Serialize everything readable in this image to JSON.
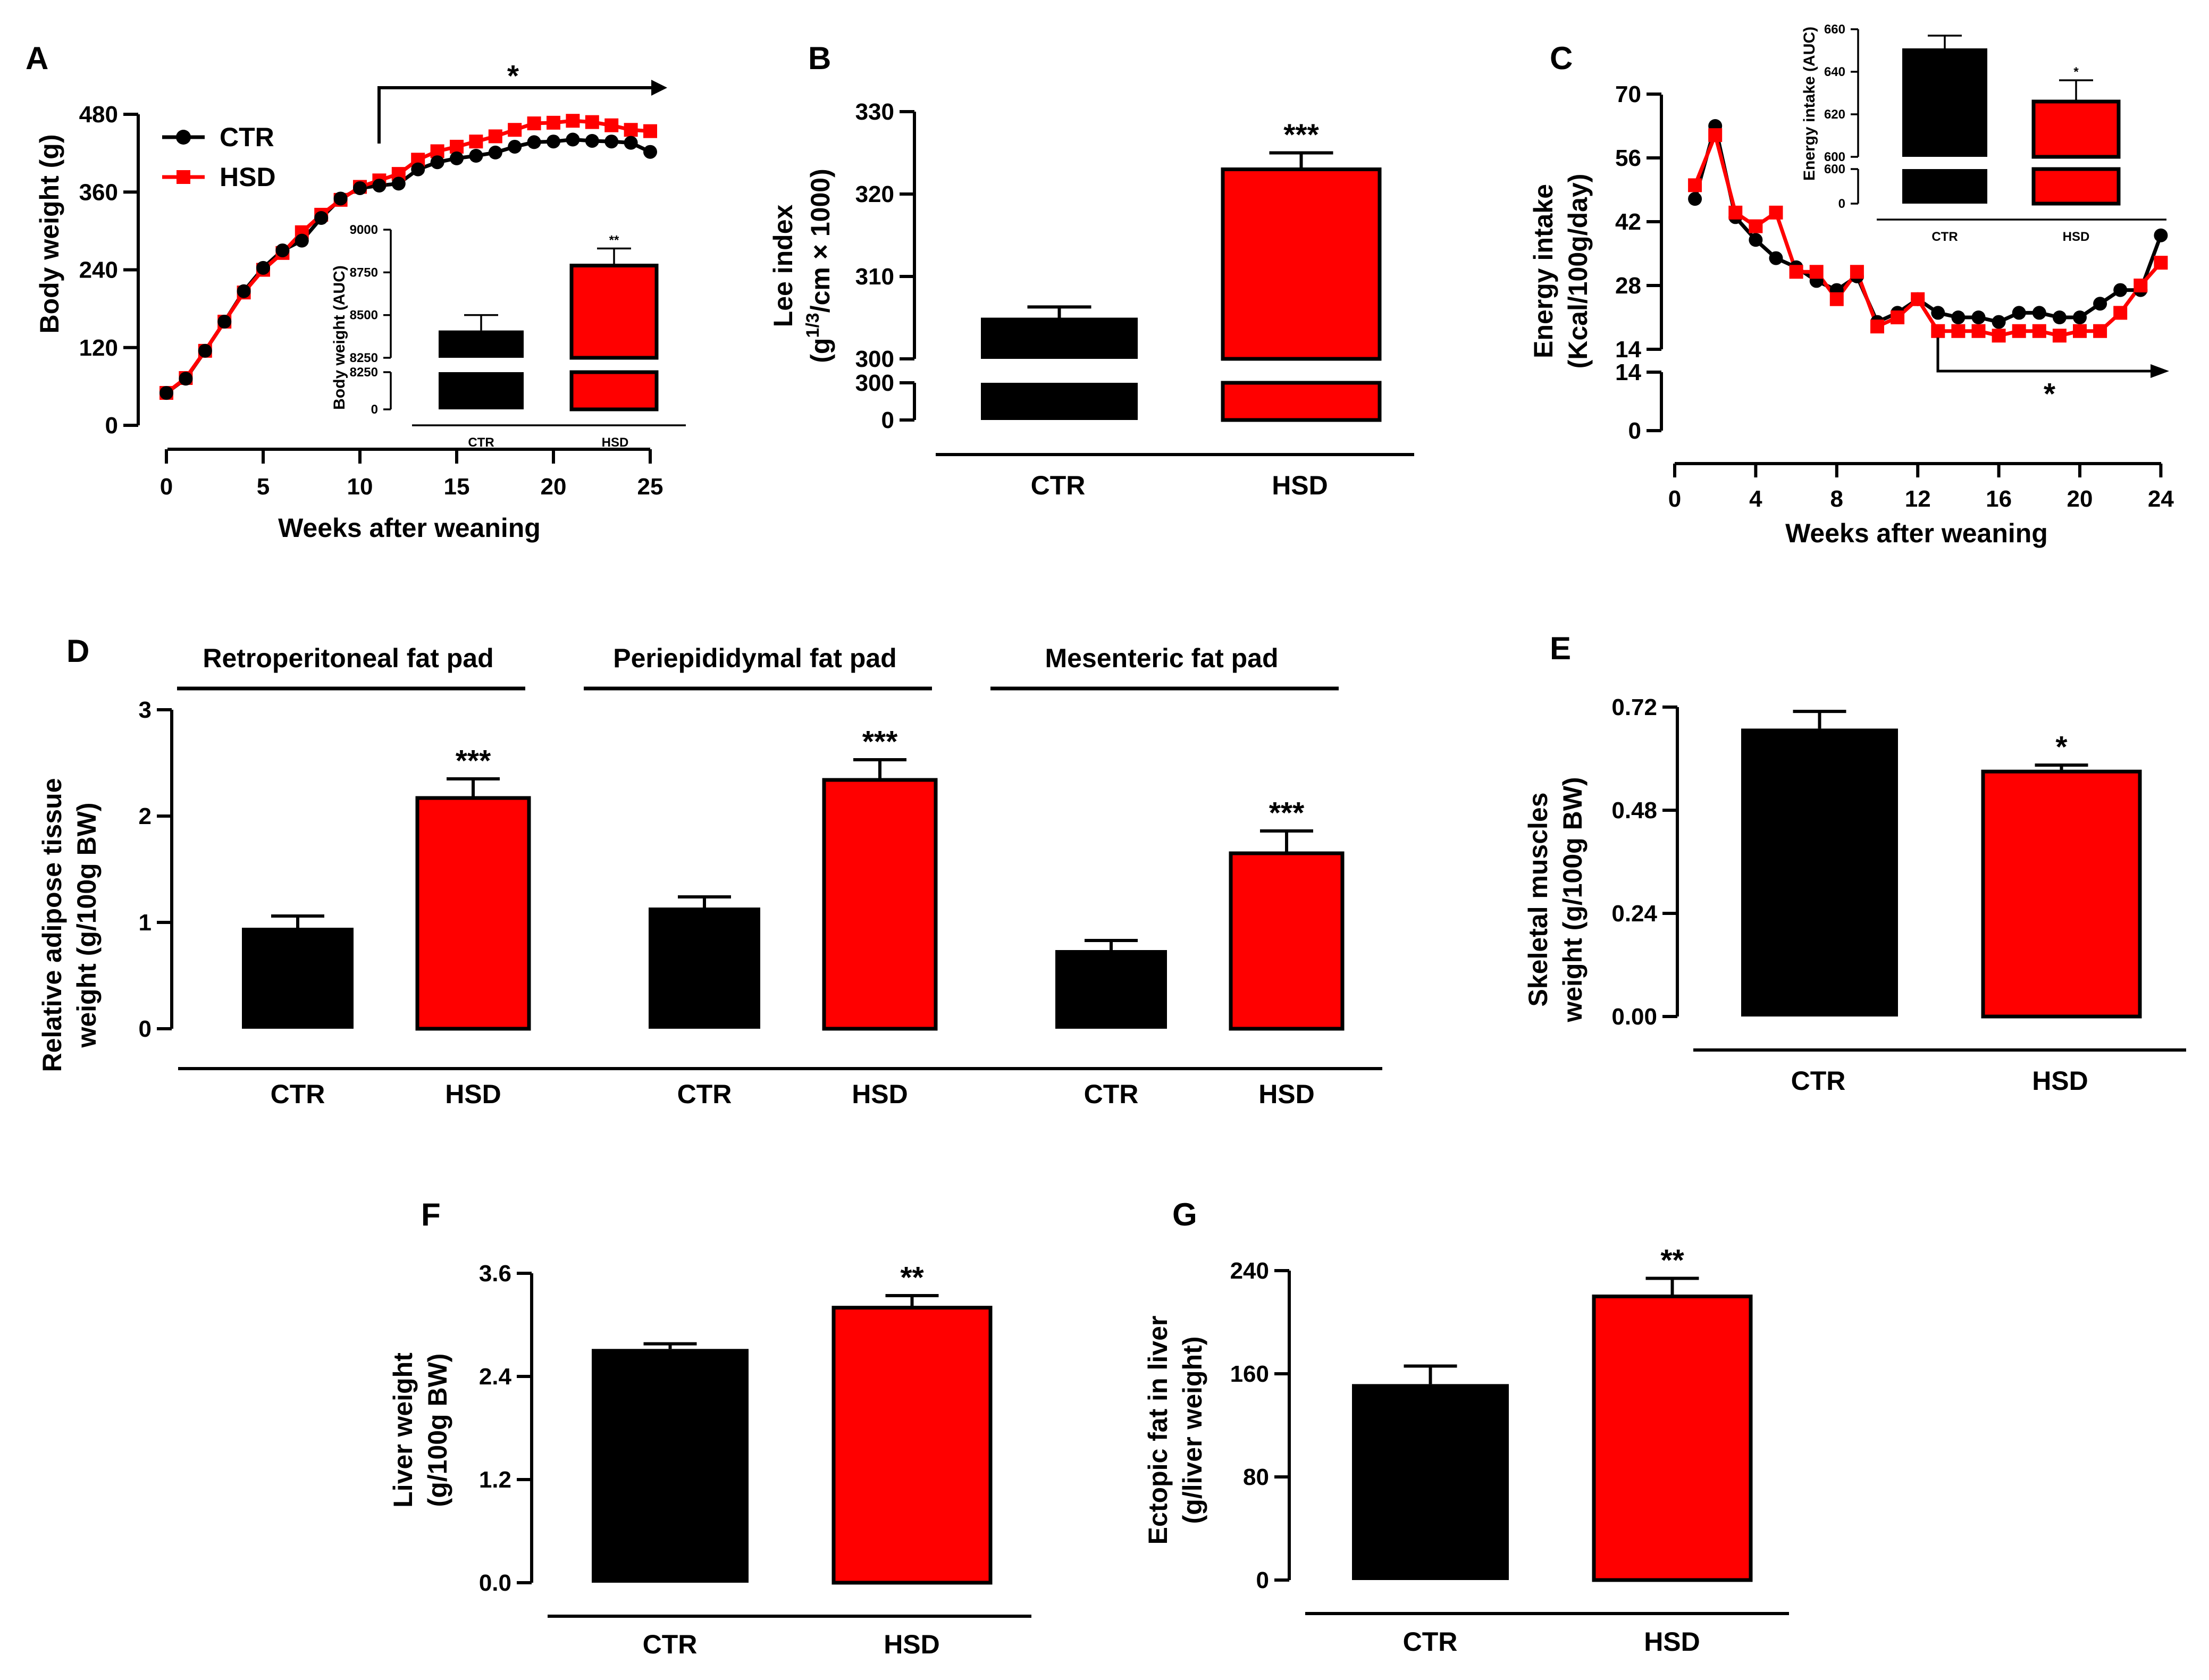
{
  "colors": {
    "ctr": "#000000",
    "hsd": "#ff0000"
  },
  "chart_data": [
    {
      "panel": "A",
      "type": "line",
      "xlabel": "Weeks after weaning",
      "ylabel": "Body weight (g)",
      "xlim": [
        0,
        25
      ],
      "ylim": [
        0,
        480
      ],
      "xticks": [
        "0",
        "5",
        "10",
        "15",
        "20",
        "25"
      ],
      "yticks": [
        "0",
        "120",
        "240",
        "360",
        "480"
      ],
      "legend": [
        "CTR",
        "HSD"
      ],
      "annotation": "*",
      "x": [
        0,
        1,
        2,
        3,
        4,
        5,
        6,
        7,
        8,
        9,
        10,
        11,
        12,
        13,
        14,
        15,
        16,
        17,
        18,
        19,
        20,
        21,
        22,
        23,
        24,
        25
      ],
      "series": [
        {
          "name": "CTR",
          "values": [
            50,
            72,
            115,
            160,
            207,
            243,
            270,
            285,
            320,
            350,
            366,
            370,
            373,
            395,
            406,
            412,
            416,
            421,
            430,
            437,
            438,
            441,
            439,
            438,
            436,
            422
          ]
        },
        {
          "name": "HSD",
          "values": [
            50,
            73,
            115,
            160,
            205,
            240,
            266,
            298,
            325,
            348,
            368,
            378,
            388,
            410,
            423,
            430,
            438,
            446,
            456,
            466,
            467,
            470,
            468,
            463,
            456,
            454
          ]
        }
      ],
      "inset": {
        "type": "bar",
        "categories": [
          "CTR",
          "HSD"
        ],
        "values": [
          8410,
          8790
        ],
        "errors": [
          90,
          100
        ],
        "ylabel": "Body weight (AUC)",
        "yticks": [
          "0",
          "8250",
          "8250",
          "8500",
          "8750",
          "9000"
        ],
        "annotations": [
          "",
          "**"
        ]
      }
    },
    {
      "panel": "B",
      "type": "bar",
      "ylabel_main": "Lee index",
      "ylabel_sub": "(g¹ᐟ³/cm × 1000)",
      "ylabel_sub_parts": [
        "(g",
        "1/3",
        "/cm × 1000)"
      ],
      "categories": [
        "CTR",
        "HSD"
      ],
      "values": [
        305,
        323
      ],
      "errors": [
        1.3,
        2
      ],
      "yticks": [
        "0",
        "300",
        "300",
        "310",
        "320",
        "330"
      ],
      "annotations": [
        "",
        "***"
      ]
    },
    {
      "panel": "C",
      "type": "line",
      "xlabel": "Weeks after weaning",
      "ylabel": [
        "Energy intake",
        "(Kcal/100g/day)"
      ],
      "xlim": [
        0,
        24
      ],
      "xticks": [
        "0",
        "4",
        "8",
        "12",
        "16",
        "20",
        "24"
      ],
      "yticks": [
        "0",
        "14",
        "14",
        "28",
        "42",
        "56",
        "70"
      ],
      "annotation": "*",
      "x": [
        1,
        2,
        3,
        4,
        5,
        6,
        7,
        8,
        9,
        10,
        11,
        12,
        13,
        14,
        15,
        16,
        17,
        18,
        19,
        20,
        21,
        22,
        23,
        24
      ],
      "series": [
        {
          "name": "CTR",
          "values": [
            47,
            63,
            43,
            38,
            34,
            32,
            29,
            27,
            30,
            20,
            22,
            25,
            22,
            21,
            21,
            20,
            22,
            22,
            21,
            21,
            24,
            27,
            27,
            39
          ]
        },
        {
          "name": "HSD",
          "values": [
            50,
            61,
            44,
            41,
            44,
            31,
            31,
            25,
            31,
            19,
            21,
            25,
            18,
            18,
            18,
            17,
            18,
            18,
            17,
            18,
            18,
            22,
            28,
            33
          ]
        }
      ],
      "inset": {
        "type": "bar",
        "categories": [
          "CTR",
          "HSD"
        ],
        "values": [
          651,
          626
        ],
        "errors": [
          6,
          10
        ],
        "ylabel": "Energy intake (AUC)",
        "yticks": [
          "0",
          "600",
          "600",
          "620",
          "640",
          "660"
        ],
        "annotations": [
          "",
          "*"
        ]
      }
    },
    {
      "panel": "D",
      "type": "bar",
      "ylabel": [
        "Relative adipose tissue",
        "weight (g/100g BW)"
      ],
      "groups": [
        {
          "title": "Retroperitoneal fat pad",
          "categories": [
            "CTR",
            "HSD"
          ],
          "values": [
            0.95,
            2.17
          ],
          "errors": [
            0.11,
            0.18
          ],
          "annotations": [
            "",
            "***"
          ]
        },
        {
          "title": "Periepididymal fat pad",
          "categories": [
            "CTR",
            "HSD"
          ],
          "values": [
            1.14,
            2.34
          ],
          "errors": [
            0.1,
            0.19
          ],
          "annotations": [
            "",
            "***"
          ]
        },
        {
          "title": "Mesenteric fat pad",
          "categories": [
            "CTR",
            "HSD"
          ],
          "values": [
            0.74,
            1.65
          ],
          "errors": [
            0.09,
            0.21
          ],
          "annotations": [
            "",
            "***"
          ]
        }
      ],
      "ylim": [
        0,
        3
      ],
      "yticks": [
        "0",
        "1",
        "2",
        "3"
      ]
    },
    {
      "panel": "E",
      "type": "bar",
      "ylabel": [
        "Skeletal muscles",
        "weight (g/100g BW)"
      ],
      "categories": [
        "CTR",
        "HSD"
      ],
      "values": [
        0.67,
        0.57
      ],
      "errors": [
        0.04,
        0.015
      ],
      "ylim": [
        0,
        0.72
      ],
      "yticks": [
        "0.00",
        "0.24",
        "0.48",
        "0.72"
      ],
      "annotations": [
        "",
        "*"
      ]
    },
    {
      "panel": "F",
      "type": "bar",
      "ylabel": [
        "Liver weight",
        "(g/100g BW)"
      ],
      "categories": [
        "CTR",
        "HSD"
      ],
      "values": [
        2.72,
        3.2
      ],
      "errors": [
        0.06,
        0.14
      ],
      "ylim": [
        0,
        3.6
      ],
      "yticks": [
        "0.0",
        "1.2",
        "2.4",
        "3.6"
      ],
      "annotations": [
        "",
        "**"
      ]
    },
    {
      "panel": "G",
      "type": "bar",
      "ylabel": [
        "Ectopic fat in liver",
        "(g/liver weight)"
      ],
      "categories": [
        "CTR",
        "HSD"
      ],
      "values": [
        152,
        220
      ],
      "errors": [
        14,
        14
      ],
      "ylim": [
        0,
        240
      ],
      "yticks": [
        "0",
        "80",
        "160",
        "240"
      ],
      "annotations": [
        "",
        "**"
      ]
    }
  ]
}
